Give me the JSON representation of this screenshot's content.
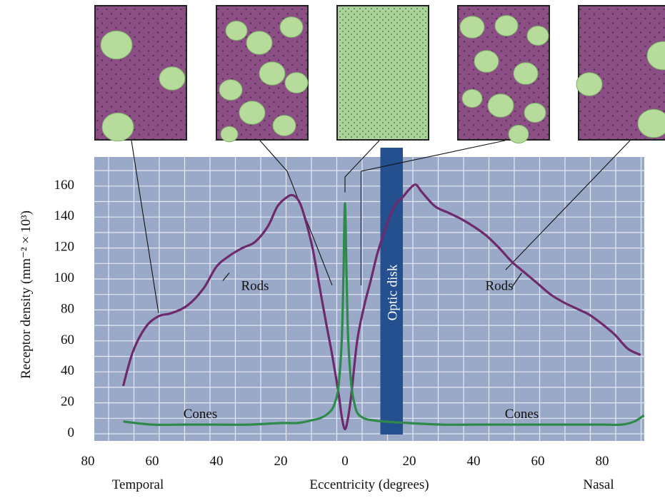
{
  "chart_data": {
    "type": "line",
    "title": "",
    "xlabel": "Eccentricity (degrees)",
    "ylabel": "Receptor density (mm⁻² × 10³)",
    "direction_labels": {
      "left": "Temporal",
      "right": "Nasal"
    },
    "xlim": [
      -80,
      95
    ],
    "ylim": [
      0,
      170
    ],
    "x_ticks": [
      -80,
      -60,
      -40,
      -20,
      0,
      20,
      40,
      60,
      80
    ],
    "x_tick_labels": [
      "80",
      "60",
      "40",
      "20",
      "0",
      "20",
      "40",
      "60",
      "80"
    ],
    "y_ticks": [
      0,
      20,
      40,
      60,
      80,
      100,
      120,
      140,
      160
    ],
    "y_tick_labels": [
      "0",
      "20",
      "40",
      "60",
      "80",
      "100",
      "120",
      "140",
      "160"
    ],
    "grid": true,
    "colors": {
      "background": "#9ba9c9",
      "grid": "#e4e9f3",
      "rods": "#6e2a6c",
      "cones": "#2e8a4a",
      "optic_disk": "#24508f"
    },
    "optic_disk": {
      "label": "Optic disk",
      "x_range": [
        13,
        18
      ]
    },
    "series": [
      {
        "name": "Rods",
        "label_positions": [
          -28,
          48
        ],
        "x": [
          -69,
          -66,
          -62,
          -58,
          -54,
          -49,
          -44,
          -40,
          -36,
          -32,
          -28,
          -24,
          -21,
          -18,
          -16,
          -14,
          -12,
          -10,
          -8,
          -6,
          -4,
          -2,
          -1,
          0,
          1,
          2,
          3,
          4,
          6,
          8,
          10,
          12,
          14,
          16,
          18,
          20,
          22,
          24,
          28,
          32,
          36,
          40,
          44,
          48,
          52,
          56,
          60,
          64,
          68,
          72,
          76,
          80,
          84,
          88,
          92
        ],
        "y": [
          30,
          52,
          68,
          75,
          77,
          82,
          93,
          107,
          114,
          119,
          123,
          133,
          146,
          152,
          153,
          148,
          135,
          118,
          95,
          72,
          50,
          25,
          10,
          2,
          10,
          25,
          45,
          62,
          82,
          98,
          115,
          128,
          140,
          148,
          152,
          157,
          160,
          155,
          146,
          142,
          138,
          133,
          127,
          119,
          110,
          103,
          96,
          89,
          84,
          80,
          76,
          70,
          63,
          54,
          50
        ]
      },
      {
        "name": "Cones",
        "label_positions": [
          -45,
          55
        ],
        "x": [
          -69,
          -60,
          -50,
          -40,
          -30,
          -20,
          -15,
          -12,
          -10,
          -8,
          -6,
          -4,
          -3,
          -2,
          -1,
          -0.5,
          0,
          0.5,
          1,
          2,
          3,
          4,
          6,
          8,
          12,
          20,
          30,
          40,
          50,
          60,
          70,
          80,
          86,
          90,
          93
        ],
        "y": [
          7,
          5,
          5,
          5,
          5,
          6,
          6,
          7,
          8,
          9,
          11,
          15,
          20,
          30,
          60,
          100,
          148,
          100,
          60,
          30,
          18,
          12,
          9,
          8,
          7,
          6,
          5,
          5,
          5,
          5,
          5,
          5,
          5,
          7,
          11
        ]
      }
    ]
  },
  "micrographs": [
    {
      "name": "temporal-far",
      "eccentricity": -58
    },
    {
      "name": "temporal-near",
      "eccentricity": -4
    },
    {
      "name": "fovea",
      "eccentricity": 0
    },
    {
      "name": "nasal-near",
      "eccentricity": 5
    },
    {
      "name": "nasal-far",
      "eccentricity": 55
    }
  ]
}
